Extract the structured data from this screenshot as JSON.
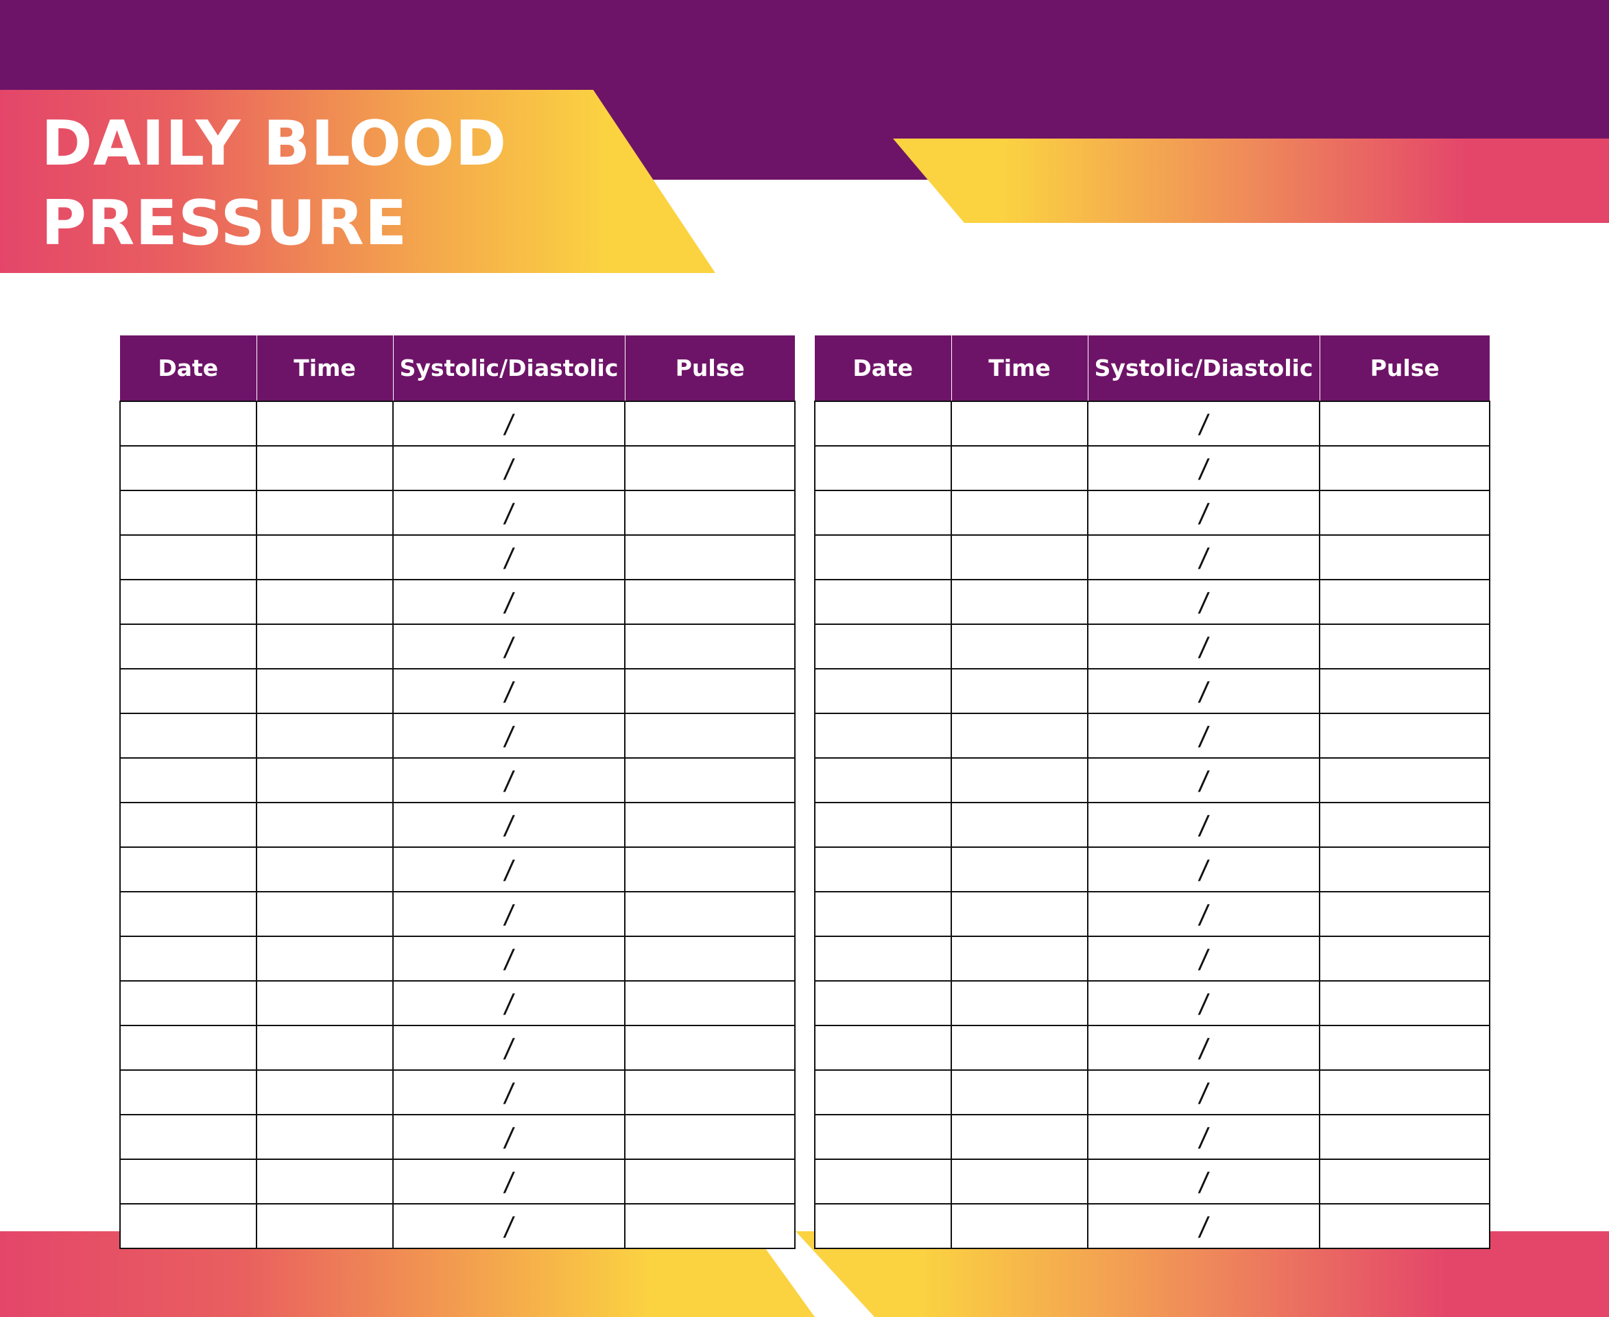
{
  "title": {
    "line1": "DAILY BLOOD",
    "line2": "PRESSURE"
  },
  "colors": {
    "purple": "#6e1468",
    "pink": "#e4466a",
    "orange": "#ef8a5a",
    "yellow": "#fbd341"
  },
  "table_headers": [
    "Date",
    "Time",
    "Systolic/Diastolic",
    "Pulse"
  ],
  "row_separator": "/",
  "rows_per_table": 19,
  "tables": [
    "left",
    "right"
  ]
}
